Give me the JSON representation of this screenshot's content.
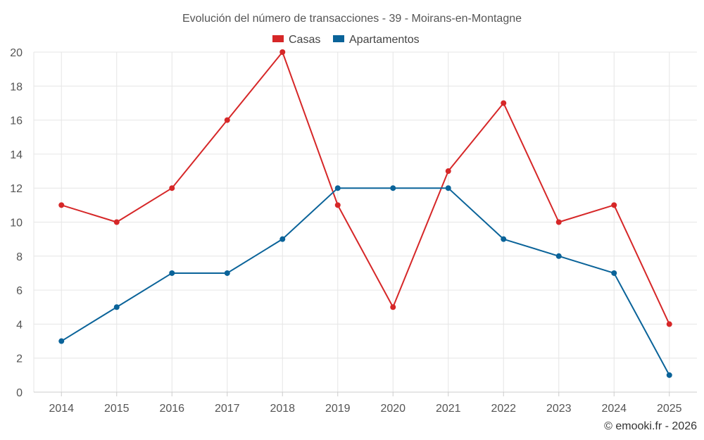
{
  "chart_data": {
    "type": "line",
    "title": "Evolución del número de transacciones - 39 - Moirans-en-Montagne",
    "categories": [
      "2014",
      "2015",
      "2016",
      "2017",
      "2018",
      "2019",
      "2020",
      "2021",
      "2022",
      "2023",
      "2024",
      "2025"
    ],
    "series": [
      {
        "name": "Casas",
        "color": "#d62728",
        "values": [
          11,
          10,
          12,
          16,
          20,
          11,
          5,
          13,
          17,
          10,
          11,
          4
        ]
      },
      {
        "name": "Apartamentos",
        "color": "#0a6399",
        "values": [
          3,
          5,
          7,
          7,
          9,
          12,
          12,
          12,
          9,
          8,
          7,
          1
        ]
      }
    ],
    "ylim": [
      0,
      20
    ],
    "yticks": [
      0,
      2,
      4,
      6,
      8,
      10,
      12,
      14,
      16,
      18,
      20
    ],
    "xlabel": "",
    "ylabel": "",
    "grid": true,
    "legend": "top-center"
  },
  "credit": "© emooki.fr - 2026"
}
